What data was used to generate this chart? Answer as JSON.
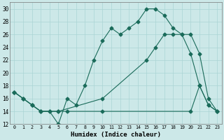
{
  "xlabel": "Humidex (Indice chaleur)",
  "bg_color": "#cce8e8",
  "line_color": "#1a6b5a",
  "grid_color": "#aad4d4",
  "xlim": [
    -0.5,
    23.5
  ],
  "ylim": [
    12,
    31
  ],
  "xticks": [
    0,
    1,
    2,
    3,
    4,
    5,
    6,
    7,
    8,
    9,
    10,
    11,
    12,
    13,
    14,
    15,
    16,
    17,
    18,
    19,
    20,
    21,
    22,
    23
  ],
  "yticks": [
    12,
    14,
    16,
    18,
    20,
    22,
    24,
    26,
    28,
    30
  ],
  "line1_x": [
    0,
    1,
    2,
    3,
    4,
    5,
    6,
    7,
    8,
    9,
    10,
    11,
    12,
    13,
    14,
    15,
    16,
    17,
    18,
    19,
    20,
    21,
    22,
    23
  ],
  "line1_y": [
    17,
    16,
    15,
    14,
    14,
    12,
    16,
    15,
    18,
    22,
    25,
    27,
    26,
    27,
    28,
    30,
    30,
    29,
    27,
    26,
    23,
    18,
    15,
    14
  ],
  "line2_x": [
    0,
    1,
    2,
    3,
    4,
    5,
    6,
    10,
    20,
    21,
    22,
    23
  ],
  "line2_y": [
    17,
    16,
    15,
    14,
    14,
    14,
    14,
    14,
    14,
    18,
    15,
    14
  ],
  "line3_x": [
    0,
    1,
    2,
    3,
    5,
    10,
    15,
    16,
    17,
    18,
    19,
    20,
    21,
    22,
    23
  ],
  "line3_y": [
    17,
    16,
    15,
    14,
    14,
    16,
    22,
    24,
    26,
    26,
    26,
    26,
    23,
    16,
    14
  ]
}
